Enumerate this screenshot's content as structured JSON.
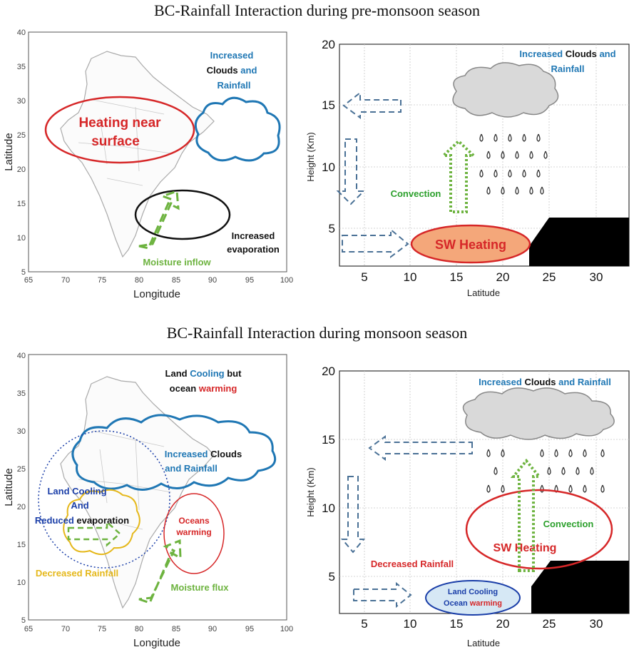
{
  "titles": {
    "top": "BC-Rainfall Interaction during pre-monsoon season",
    "bottom": "BC-Rainfall Interaction during monsoon season"
  },
  "colors": {
    "blue_text": "#1f77b4",
    "black_text": "#111111",
    "red": "#d62728",
    "green": "#6db33f",
    "green_text": "#2ca02c",
    "orange_fill": "#f4a77a",
    "yellow": "#e5b81b",
    "navy": "#1a3ea8",
    "dashed_blue": "#4a7196",
    "land_cool_fill": "#d6e8f5"
  },
  "map_axes": {
    "xlabel": "Longitude",
    "ylabel": "Latitude",
    "xticks": [
      "65",
      "70",
      "75",
      "80",
      "85",
      "90",
      "95",
      "100"
    ],
    "yticks": [
      "5",
      "10",
      "15",
      "20",
      "25",
      "30",
      "35",
      "40"
    ]
  },
  "section_axes": {
    "xlabel": "Latitude",
    "ylabel": "Height (Km)",
    "xticks": [
      "5",
      "10",
      "15",
      "20",
      "25",
      "30"
    ],
    "yticks": [
      "5",
      "10",
      "15",
      "20"
    ]
  },
  "pre_monsoon": {
    "map": {
      "heating_line1": "Heating near",
      "heating_line2": "surface",
      "cloud_w1": "Increased",
      "cloud_w2": "Clouds",
      "cloud_w3": "and",
      "cloud_w4": "Rainfall",
      "evap_line1": "Increased",
      "evap_line2": "evaporation",
      "moisture": "Moisture inflow"
    },
    "section": {
      "w1": "Increased",
      "w2": "Clouds",
      "w3": "and",
      "w4": "Rainfall",
      "convection": "Convection",
      "sw_heating": "SW Heating"
    }
  },
  "monsoon": {
    "map": {
      "land_w1": "Land",
      "land_w2": "Cooling",
      "land_w3": "but",
      "ocean_w1": "ocean",
      "ocean_w2": "warming",
      "cloud_w1": "Increased",
      "cloud_w2": "Clouds",
      "cloud_line2": "and Rainfall",
      "lc_line1": "Land Cooling",
      "lc_line2": "And",
      "lc_w1": "Reduced",
      "lc_w2": "evaporation",
      "oceans_line1": "Oceans",
      "oceans_line2": "warming",
      "decreased": "Decreased Rainfall",
      "moisture": "Moisture flux"
    },
    "section": {
      "w1": "Increased",
      "w2": "Clouds",
      "w3": "and",
      "w4": "Rainfall",
      "convection": "Convection",
      "sw_heating": "SW Heating",
      "decreased": "Decreased Rainfall",
      "lc_line1": "Land Cooling",
      "oc_w1": "Ocean",
      "oc_w2": "warming"
    }
  }
}
